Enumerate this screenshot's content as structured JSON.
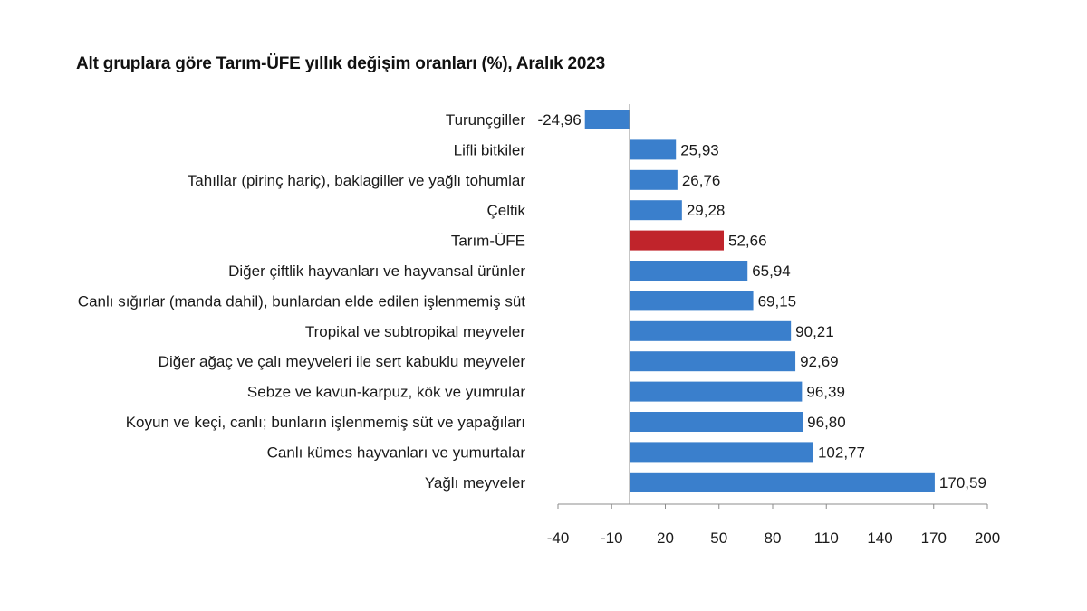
{
  "chart_data": {
    "type": "bar",
    "orientation": "horizontal",
    "title": "Alt gruplara göre Tarım-ÜFE yıllık değişim oranları (%), Aralık 2023",
    "categories": [
      "Turunçgiller",
      "Lifli bitkiler",
      "Tahıllar (pirinç hariç), baklagiller ve yağlı tohumlar",
      "Çeltik",
      "Tarım-ÜFE",
      "Diğer çiftlik hayvanları ve hayvansal ürünler",
      "Canlı sığırlar (manda dahil), bunlardan elde edilen işlenmemiş süt",
      "Tropikal ve subtropikal meyveler",
      "Diğer ağaç ve çalı meyveleri ile sert kabuklu meyveler",
      "Sebze ve kavun-karpuz, kök ve yumrular",
      "Koyun ve keçi, canlı; bunların işlenmemiş süt ve yapağıları",
      "Canlı kümes hayvanları ve yumurtalar",
      "Yağlı meyveler"
    ],
    "values": [
      -24.96,
      25.93,
      26.76,
      29.28,
      52.66,
      65.94,
      69.15,
      90.21,
      92.69,
      96.39,
      96.8,
      102.77,
      170.59
    ],
    "value_labels": [
      "-24,96",
      "25,93",
      "26,76",
      "29,28",
      "52,66",
      "65,94",
      "69,15",
      "90,21",
      "92,69",
      "96,39",
      "96,80",
      "102,77",
      "170,59"
    ],
    "highlight_category": "Tarım-ÜFE",
    "xlim": [
      -40,
      200
    ],
    "xticks": [
      -40,
      -10,
      20,
      50,
      80,
      110,
      140,
      170,
      200
    ],
    "xlabel": "",
    "ylabel": "",
    "grid": false,
    "legend": "none",
    "colors": {
      "bar": "#3a7fcc",
      "highlight": "#c0242b",
      "axis": "#8c8c8c"
    }
  }
}
